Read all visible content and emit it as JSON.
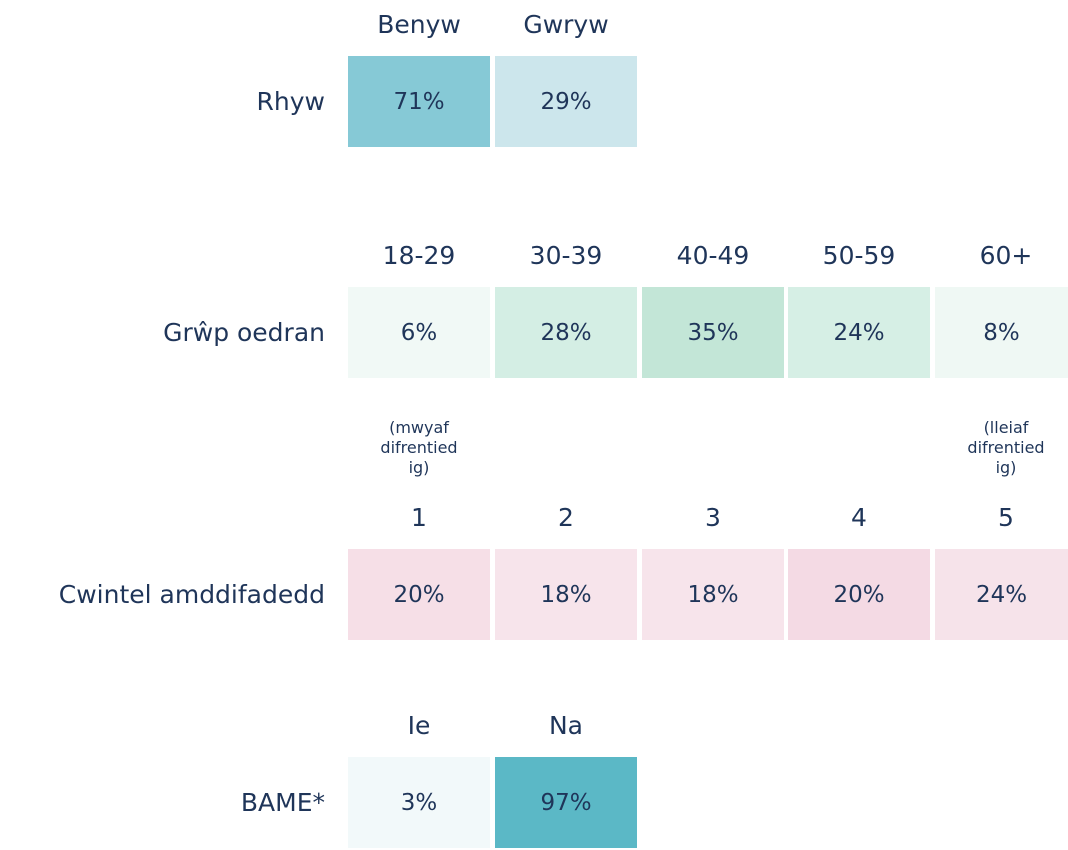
{
  "sections": [
    {
      "label": "Rhyw",
      "headers": [
        "Benyw",
        "Gwryw"
      ],
      "values": [
        "71%",
        "29%"
      ],
      "colors": [
        "#86c9d6",
        "#cce6ec"
      ]
    },
    {
      "label": "Grŵp oedran",
      "headers": [
        "18-29",
        "30-39",
        "40-49",
        "50-59",
        "60+"
      ],
      "values": [
        "6%",
        "28%",
        "35%",
        "24%",
        "8%"
      ],
      "colors": [
        "#f1f9f6",
        "#d4eee4",
        "#c3e6d7",
        "#d6efe5",
        "#eff8f4"
      ]
    },
    {
      "label": "Cwintel amddifadedd",
      "headers": [
        "1",
        "2",
        "3",
        "4",
        "5"
      ],
      "notes": [
        [
          "(mwyaf",
          "difrentied",
          "ig)"
        ],
        null,
        null,
        null,
        [
          "(lleiaf",
          "difrentied",
          "ig)"
        ]
      ],
      "values": [
        "20%",
        "18%",
        "18%",
        "20%",
        "24%"
      ],
      "colors": [
        "#f6dfe7",
        "#f7e4eb",
        "#f7e4eb",
        "#f4dae4",
        "#f6e3ea"
      ]
    },
    {
      "label": "BAME*",
      "headers": [
        "Ie",
        "Na"
      ],
      "values": [
        "3%",
        "97%"
      ],
      "colors": [
        "#f2f9fa",
        "#5bb8c6"
      ]
    }
  ]
}
